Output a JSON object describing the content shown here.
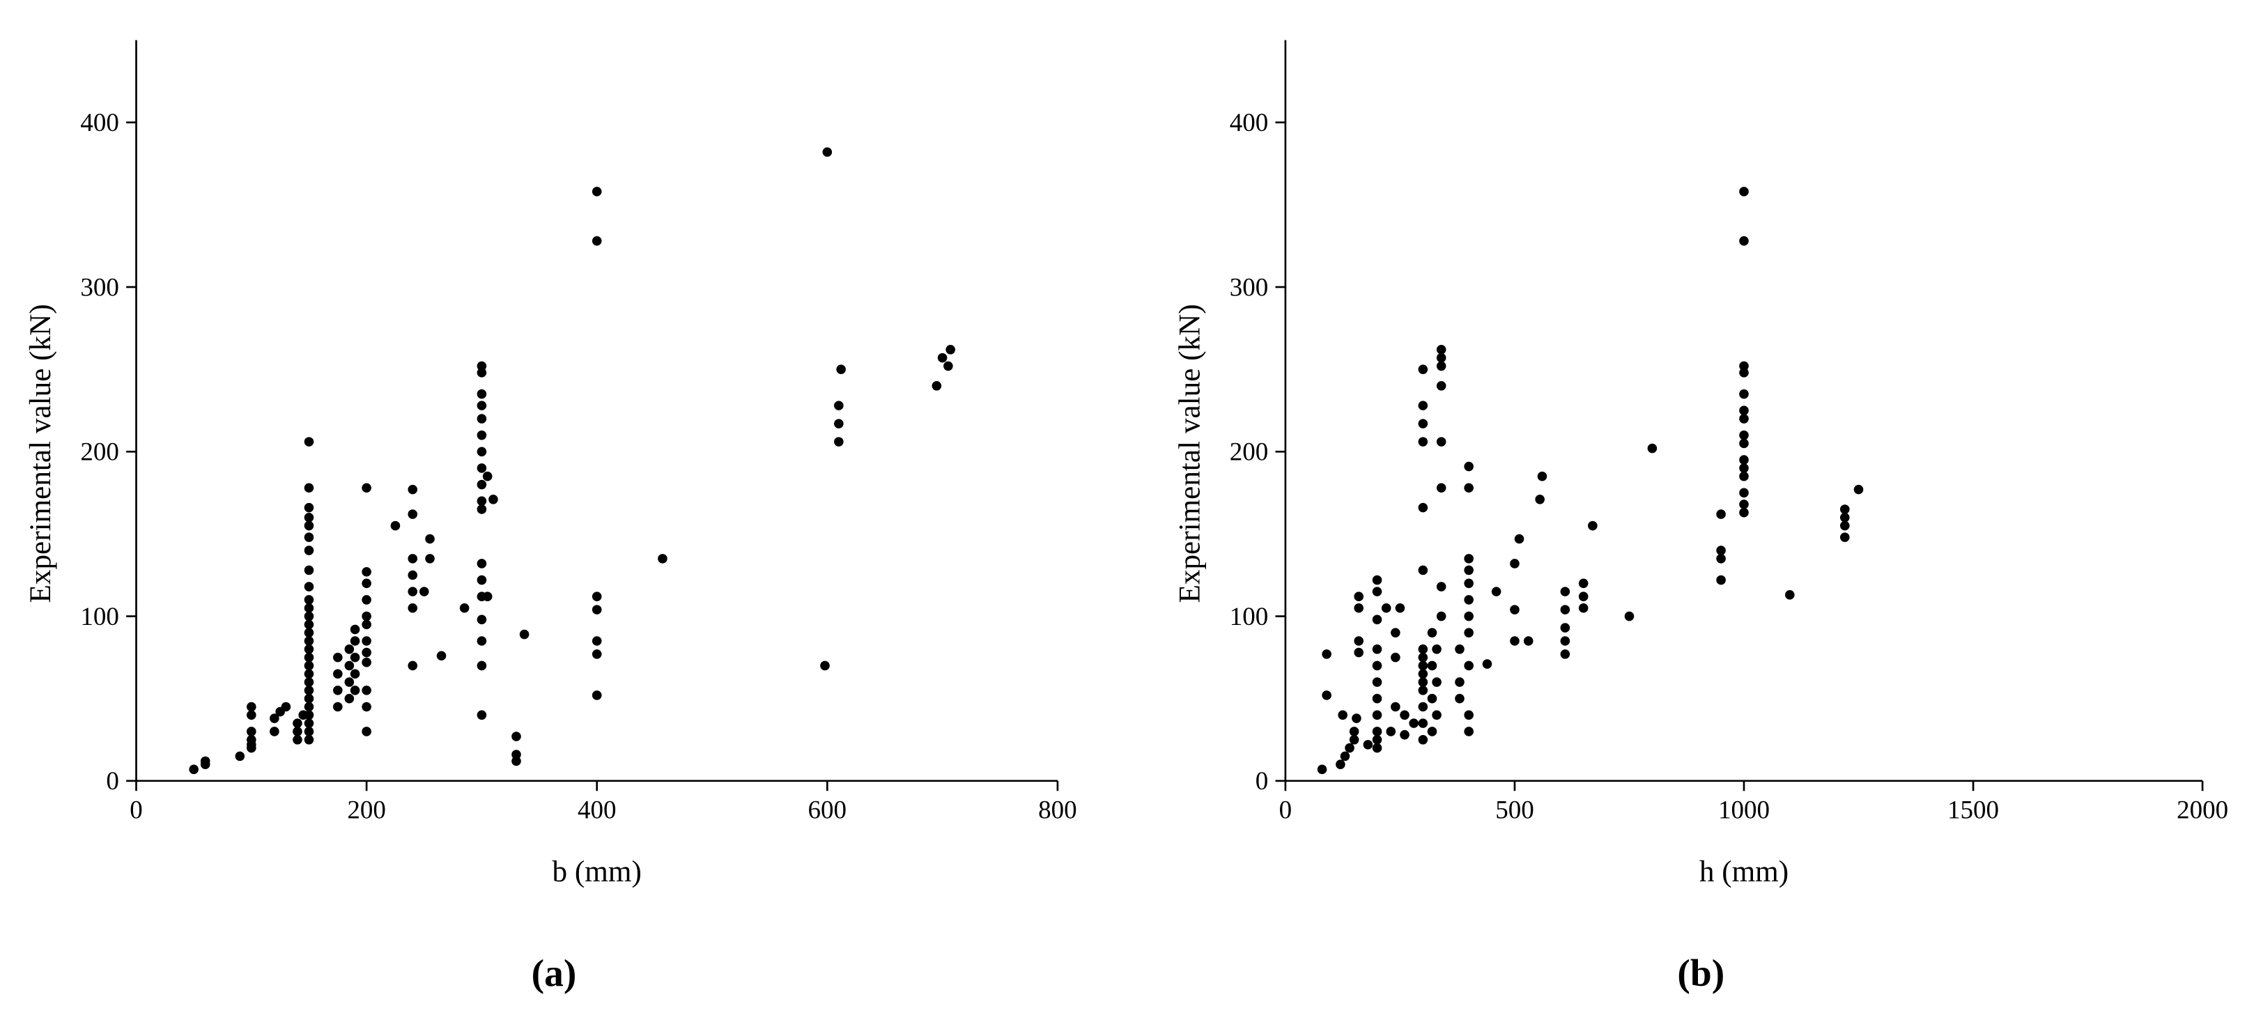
{
  "chart_data": [
    {
      "type": "scatter",
      "panel_label": "(a)",
      "xlabel": "b (mm)",
      "ylabel": "Experimental value (kN)",
      "color": "#000000",
      "xlim": [
        0,
        800
      ],
      "ylim": [
        0,
        450
      ],
      "xticks": [
        0,
        200,
        400,
        600,
        800
      ],
      "yticks": [
        0,
        100,
        200,
        300,
        400
      ],
      "x": [
        50,
        60,
        60,
        90,
        100,
        100,
        100,
        100,
        100,
        100,
        120,
        120,
        125,
        130,
        140,
        140,
        140,
        145,
        150,
        150,
        150,
        150,
        150,
        150,
        150,
        150,
        150,
        150,
        150,
        150,
        150,
        150,
        150,
        150,
        150,
        150,
        150,
        150,
        150,
        150,
        150,
        150,
        150,
        150,
        150,
        175,
        175,
        175,
        175,
        185,
        185,
        185,
        185,
        190,
        190,
        190,
        190,
        190,
        200,
        200,
        200,
        200,
        200,
        200,
        200,
        200,
        200,
        200,
        200,
        200,
        225,
        240,
        240,
        240,
        240,
        240,
        240,
        240,
        250,
        255,
        255,
        265,
        285,
        300,
        300,
        300,
        300,
        300,
        300,
        300,
        300,
        300,
        300,
        300,
        300,
        300,
        300,
        300,
        300,
        300,
        300,
        305,
        305,
        310,
        330,
        330,
        330,
        337,
        400,
        400,
        400,
        400,
        400,
        400,
        400,
        457,
        598,
        600,
        610,
        610,
        610,
        612,
        695,
        700,
        705,
        707
      ],
      "values": [
        7,
        10,
        12,
        15,
        20,
        25,
        30,
        40,
        45,
        22,
        30,
        38,
        42,
        45,
        25,
        30,
        35,
        40,
        25,
        30,
        35,
        40,
        45,
        50,
        55,
        60,
        65,
        70,
        75,
        80,
        85,
        90,
        95,
        100,
        105,
        110,
        118,
        128,
        140,
        148,
        155,
        160,
        166,
        178,
        206,
        45,
        55,
        65,
        75,
        50,
        60,
        70,
        80,
        55,
        65,
        75,
        85,
        92,
        30,
        45,
        55,
        72,
        78,
        85,
        95,
        100,
        110,
        120,
        127,
        178,
        155,
        70,
        105,
        115,
        125,
        135,
        162,
        177,
        115,
        135,
        147,
        76,
        105,
        40,
        70,
        85,
        98,
        112,
        122,
        132,
        165,
        170,
        180,
        190,
        200,
        210,
        220,
        228,
        235,
        248,
        252,
        185,
        112,
        171,
        12,
        16,
        27,
        89,
        52,
        77,
        85,
        104,
        112,
        328,
        358,
        135,
        70,
        382,
        206,
        217,
        228,
        250,
        240,
        257,
        252,
        262
      ]
    },
    {
      "type": "scatter",
      "panel_label": "(b)",
      "xlabel": "h (mm)",
      "ylabel": "Experimental value (kN)",
      "color": "#000000",
      "xlim": [
        0,
        2000
      ],
      "ylim": [
        0,
        450
      ],
      "xticks": [
        0,
        500,
        1000,
        1500,
        2000
      ],
      "yticks": [
        0,
        100,
        200,
        300,
        400
      ],
      "x": [
        80,
        90,
        90,
        120,
        125,
        130,
        140,
        150,
        150,
        155,
        160,
        160,
        160,
        160,
        180,
        200,
        200,
        200,
        200,
        200,
        200,
        200,
        200,
        200,
        200,
        200,
        220,
        230,
        240,
        240,
        240,
        250,
        260,
        260,
        280,
        300,
        300,
        300,
        300,
        300,
        300,
        300,
        300,
        300,
        300,
        300,
        300,
        300,
        300,
        300,
        320,
        320,
        320,
        320,
        330,
        330,
        330,
        340,
        340,
        340,
        340,
        340,
        340,
        340,
        340,
        380,
        380,
        380,
        400,
        400,
        400,
        400,
        400,
        400,
        400,
        400,
        400,
        400,
        400,
        440,
        460,
        500,
        500,
        500,
        510,
        530,
        555,
        560,
        610,
        610,
        610,
        610,
        610,
        650,
        650,
        650,
        670,
        750,
        800,
        950,
        950,
        950,
        950,
        1000,
        1000,
        1000,
        1000,
        1000,
        1000,
        1000,
        1000,
        1000,
        1000,
        1000,
        1000,
        1000,
        1000,
        1000,
        1100,
        1220,
        1220,
        1220,
        1220,
        1250
      ],
      "values": [
        7,
        77,
        52,
        10,
        40,
        15,
        20,
        25,
        30,
        38,
        78,
        85,
        105,
        112,
        22,
        20,
        25,
        30,
        40,
        50,
        60,
        70,
        80,
        98,
        115,
        122,
        105,
        30,
        45,
        75,
        90,
        105,
        28,
        40,
        35,
        25,
        35,
        45,
        55,
        60,
        65,
        70,
        75,
        80,
        128,
        166,
        206,
        217,
        228,
        250,
        30,
        50,
        70,
        90,
        40,
        60,
        80,
        100,
        118,
        178,
        206,
        240,
        252,
        257,
        262,
        50,
        60,
        80,
        30,
        40,
        70,
        90,
        100,
        110,
        120,
        128,
        135,
        178,
        191,
        71,
        115,
        85,
        104,
        132,
        147,
        85,
        171,
        185,
        77,
        85,
        93,
        104,
        115,
        105,
        112,
        120,
        155,
        100,
        202,
        122,
        135,
        140,
        162,
        163,
        168,
        175,
        185,
        190,
        195,
        205,
        210,
        220,
        225,
        235,
        248,
        252,
        328,
        358,
        113,
        148,
        155,
        160,
        165,
        177
      ]
    }
  ]
}
